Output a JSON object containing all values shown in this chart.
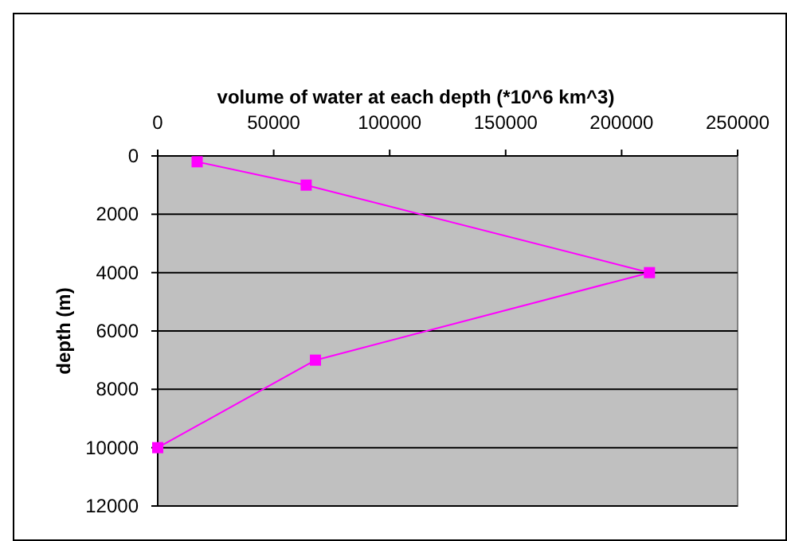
{
  "chart_data": {
    "type": "line",
    "title": "volume of water at each depth (*10^6 km^3)",
    "ylabel": "depth (m)",
    "series": [
      {
        "color": "#ff00ff",
        "x": [
          17000,
          64000,
          212000,
          68000,
          0
        ],
        "values": [
          200,
          1000,
          4000,
          7000,
          10000
        ]
      }
    ],
    "xlim": [
      0,
      250000
    ],
    "xticks": [
      0,
      50000,
      100000,
      150000,
      200000,
      250000
    ],
    "ylim": [
      12000,
      0
    ],
    "yticks": [
      0,
      2000,
      4000,
      6000,
      8000,
      10000,
      12000
    ],
    "grid": "y",
    "marker": "square",
    "line_style": "solid"
  }
}
